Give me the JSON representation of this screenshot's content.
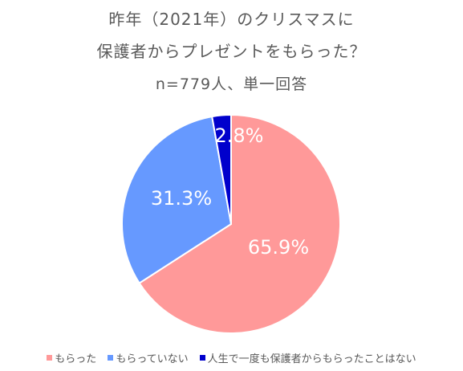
{
  "chart_data": {
    "type": "pie",
    "title_line1": "昨年（2021年）のクリスマスに",
    "title_line2": "保護者からプレゼントをもらった？",
    "subtitle": "n=779人、単一回答",
    "series": [
      {
        "name": "もらった",
        "value": 65.9,
        "label": "65.9%",
        "color": "#FF9999"
      },
      {
        "name": "もらっていない",
        "value": 31.3,
        "label": "31.3%",
        "color": "#6699FF"
      },
      {
        "name": "人生で一度も保護者からもらったことはない",
        "value": 2.8,
        "label": "2.8%",
        "color": "#0000CC"
      }
    ],
    "legend_position": "bottom",
    "start_angle": "12 o'clock",
    "direction": "clockwise"
  }
}
